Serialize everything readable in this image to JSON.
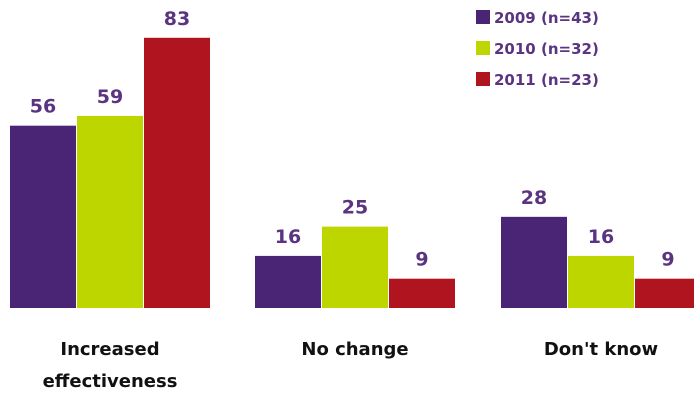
{
  "chart_data": {
    "type": "bar",
    "categories": [
      "Increased effectiveness",
      "No change",
      "Don't know"
    ],
    "series": [
      {
        "name": "2009 (n=43)",
        "color": "#4b2575",
        "values": [
          56,
          16,
          28
        ]
      },
      {
        "name": "2010 (n=32)",
        "color": "#bed600",
        "values": [
          59,
          25,
          16
        ]
      },
      {
        "name": "2011 (n=23)",
        "color": "#b0151f",
        "values": [
          83,
          9,
          9
        ]
      }
    ],
    "ylim": [
      0,
      90
    ],
    "grid": false,
    "legend": "top-right"
  }
}
